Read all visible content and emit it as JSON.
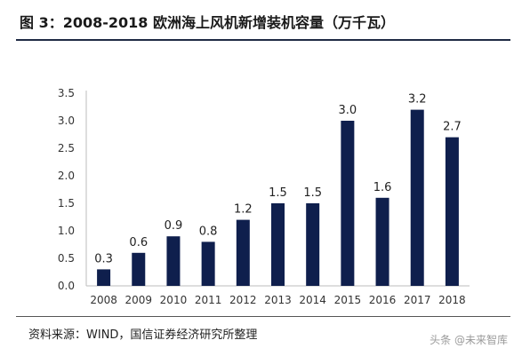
{
  "header": {
    "title": "图 3：2008-2018 欧洲海上风机新增装机容量（万千瓦）"
  },
  "footer": {
    "source": "资料来源：WIND，国信证券经济研究所整理",
    "watermark": "头条 @未来智库"
  },
  "chart_data": {
    "type": "bar",
    "categories": [
      "2008",
      "2009",
      "2010",
      "2011",
      "2012",
      "2013",
      "2014",
      "2015",
      "2016",
      "2017",
      "2018"
    ],
    "values": [
      0.3,
      0.6,
      0.9,
      0.8,
      1.2,
      1.5,
      1.5,
      3.0,
      1.6,
      3.2,
      2.7
    ],
    "value_labels": [
      "0.3",
      "0.6",
      "0.9",
      "0.8",
      "1.2",
      "1.5",
      "1.5",
      "3.0",
      "1.6",
      "3.2",
      "2.7"
    ],
    "ylim": [
      0,
      3.5
    ],
    "yticks": [
      "0.0",
      "0.5",
      "1.0",
      "1.5",
      "2.0",
      "2.5",
      "3.0",
      "3.5"
    ],
    "ytick_values": [
      0,
      0.5,
      1.0,
      1.5,
      2.0,
      2.5,
      3.0,
      3.5
    ],
    "bar_color": "#0f1f4d",
    "grid": false,
    "legend": "none"
  }
}
